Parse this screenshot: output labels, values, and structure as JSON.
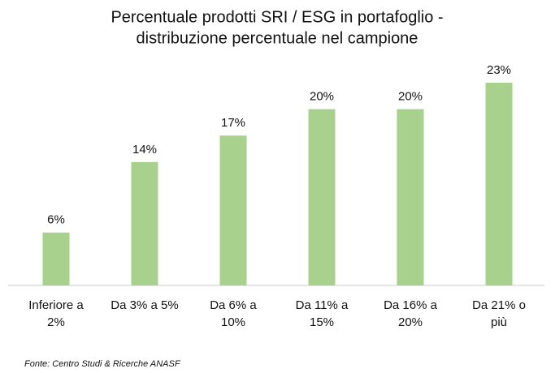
{
  "chart_data": {
    "type": "bar",
    "title": [
      "Percentuale prodotti SRI / ESG in portafoglio -",
      "distribuzione percentuale nel campione"
    ],
    "categories": [
      [
        "Inferiore a",
        "2%"
      ],
      [
        "Da 3% a 5%"
      ],
      [
        "Da 6% a",
        "10%"
      ],
      [
        "Da 11% a",
        "15%"
      ],
      [
        "Da 16% a",
        "20%"
      ],
      [
        "Da 21% o",
        "più"
      ]
    ],
    "values": [
      6,
      14,
      17,
      20,
      20,
      23
    ],
    "value_labels": [
      "6%",
      "14%",
      "17%",
      "20%",
      "20%",
      "23%"
    ],
    "color": "#a9d18e",
    "source": "Fonte: Centro Studi & Ricerche ANASF"
  }
}
